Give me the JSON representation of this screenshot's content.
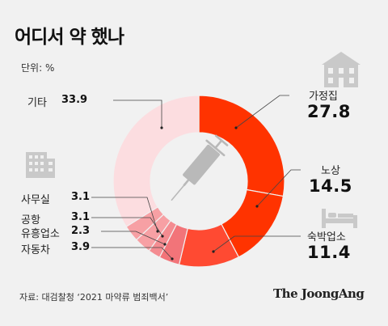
{
  "title": "어디서 약 했나",
  "unit": "단위: %",
  "source": "자료: 대검찰청 ‘2021 마약류 범죄백서’",
  "brand": "The JoongAng",
  "chart_data": {
    "type": "pie",
    "title": "어디서 약 했나",
    "unit": "%",
    "categories": [
      "가정집",
      "노상",
      "숙박업소",
      "자동차",
      "유흥업소",
      "공항",
      "사무실",
      "기타"
    ],
    "values": [
      27.8,
      14.5,
      11.4,
      3.9,
      2.3,
      3.1,
      3.1,
      33.9
    ],
    "labels": [
      "27.8",
      "14.5",
      "11.4",
      "3.9",
      "2.3",
      "3.1",
      "3.1",
      "33.9"
    ],
    "colors": [
      "#ff3300",
      "#ff3300",
      "#ff4a32",
      "#f27479",
      "#f48c91",
      "#f7a0a4",
      "#f7a0a4",
      "#fcdde0"
    ]
  }
}
